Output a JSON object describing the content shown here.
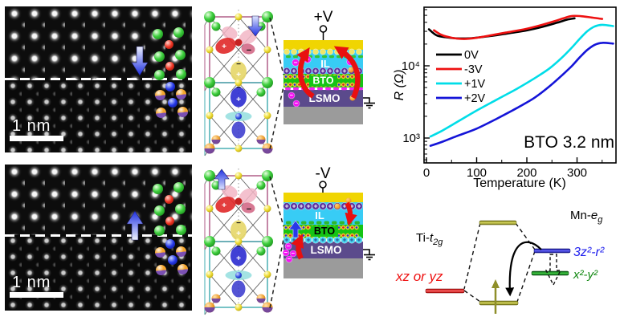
{
  "symbols": {
    "plus": "+",
    "minus": "−"
  },
  "stem": {
    "top": {
      "scale_label": "1 nm"
    },
    "bottom": {
      "scale_label": "1 nm"
    }
  },
  "devices": {
    "plus": {
      "terminal": "+V",
      "il": "IL",
      "bto": "BTO",
      "lsmo": "LSMO"
    },
    "minus": {
      "terminal": "-V",
      "il": "IL",
      "bto": "BTO",
      "lsmo": "LSMO"
    }
  },
  "chart_data": {
    "type": "line",
    "xlabel": "Temperature (K)",
    "ylabel": "R (Ω)",
    "xlim": [
      0,
      380
    ],
    "ylog": true,
    "ylim": [
      450,
      64000
    ],
    "x_ticks": [
      0,
      100,
      200,
      300
    ],
    "x_minor_ticks": [
      50,
      150,
      250,
      350
    ],
    "y_tick_values": [
      1000,
      10000
    ],
    "y_tick_labels": [
      "10³",
      "10⁴"
    ],
    "annotation": "BTO 3.2 nm",
    "legend_position": "upper-left-inside",
    "series": [
      {
        "name": "0V",
        "color": "#000000",
        "points": [
          [
            5,
            32000
          ],
          [
            20,
            26500
          ],
          [
            40,
            24800
          ],
          [
            60,
            24000
          ],
          [
            85,
            24000
          ],
          [
            110,
            25000
          ],
          [
            140,
            26600
          ],
          [
            170,
            28600
          ],
          [
            200,
            31000
          ],
          [
            230,
            34500
          ],
          [
            260,
            39500
          ],
          [
            280,
            43500
          ],
          [
            295,
            45500
          ]
        ]
      },
      {
        "name": "-3V",
        "color": "#ee1111",
        "points": [
          [
            15,
            31000
          ],
          [
            30,
            26800
          ],
          [
            50,
            24500
          ],
          [
            75,
            23500
          ],
          [
            100,
            24400
          ],
          [
            130,
            26600
          ],
          [
            160,
            29000
          ],
          [
            195,
            32000
          ],
          [
            225,
            36000
          ],
          [
            255,
            41500
          ],
          [
            275,
            46000
          ],
          [
            290,
            49000
          ],
          [
            310,
            48500
          ],
          [
            330,
            46500
          ],
          [
            350,
            44500
          ]
        ]
      },
      {
        "name": "+1V",
        "color": "#00dde8",
        "points": [
          [
            8,
            1050
          ],
          [
            30,
            1250
          ],
          [
            60,
            1650
          ],
          [
            100,
            2400
          ],
          [
            140,
            3400
          ],
          [
            180,
            4800
          ],
          [
            215,
            6700
          ],
          [
            245,
            9200
          ],
          [
            270,
            13000
          ],
          [
            290,
            18000
          ],
          [
            305,
            23500
          ],
          [
            320,
            30000
          ],
          [
            335,
            35000
          ],
          [
            350,
            37000
          ],
          [
            372,
            35500
          ]
        ]
      },
      {
        "name": "+2V",
        "color": "#1414d8",
        "points": [
          [
            8,
            780
          ],
          [
            30,
            880
          ],
          [
            60,
            1060
          ],
          [
            100,
            1350
          ],
          [
            140,
            1850
          ],
          [
            180,
            2600
          ],
          [
            215,
            3600
          ],
          [
            245,
            5200
          ],
          [
            270,
            7400
          ],
          [
            290,
            10000
          ],
          [
            305,
            13000
          ],
          [
            320,
            16500
          ],
          [
            335,
            19500
          ],
          [
            350,
            20800
          ],
          [
            372,
            20300
          ]
        ]
      }
    ]
  },
  "energy": {
    "ti_label": {
      "main": "Ti-",
      "it": "t",
      "sub": "2g"
    },
    "mn_label": {
      "main": "Mn-",
      "it": "e",
      "sub": "g"
    },
    "xz_label": "xz or yz",
    "z2_label": "3z²-r²",
    "x2_label": "x²-y²",
    "colors": {
      "xz": "#ee1111",
      "z2": "#2222ee",
      "x2": "#118811",
      "level": "#8f8f2a"
    }
  }
}
